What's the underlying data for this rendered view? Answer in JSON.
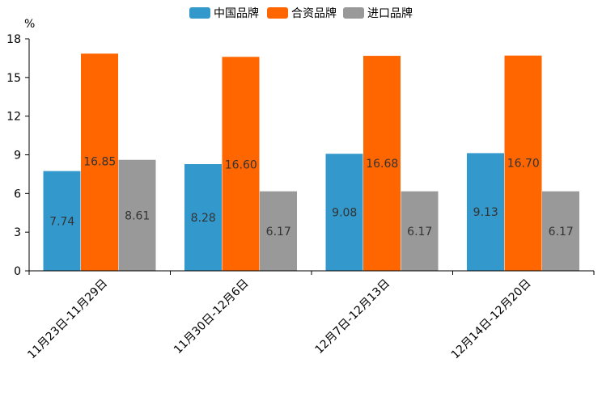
{
  "chart_data": {
    "type": "bar",
    "title": "",
    "ylabel": "%",
    "xlabel": "",
    "ylim": [
      0,
      18
    ],
    "yticks": [
      "0",
      "3",
      "6",
      "9",
      "12",
      "15",
      "18"
    ],
    "categories": [
      "11月23日-11月29日",
      "11月30日-12月6日",
      "12月7日-12月13日",
      "12月14日-12月20日"
    ],
    "series": [
      {
        "name": "中国品牌",
        "color": "#3399cc",
        "values": [
          7.74,
          8.28,
          9.08,
          9.13
        ],
        "labels": [
          "7.74",
          "8.28",
          "9.08",
          "9.13"
        ]
      },
      {
        "name": "合资品牌",
        "color": "#ff6600",
        "values": [
          16.85,
          16.6,
          16.68,
          16.7
        ],
        "labels": [
          "16.85",
          "16.60",
          "16.68",
          "16.70"
        ]
      },
      {
        "name": "进口品牌",
        "color": "#999999",
        "values": [
          8.61,
          6.17,
          6.17,
          6.17
        ],
        "labels": [
          "8.61",
          "6.17",
          "6.17",
          "6.17"
        ]
      }
    ],
    "legend_position": "top"
  }
}
